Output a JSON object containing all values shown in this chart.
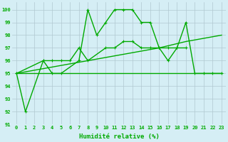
{
  "line1_x": [
    0,
    1,
    3,
    4,
    5,
    7,
    8,
    9,
    10,
    11,
    12,
    13,
    14,
    15,
    16,
    17,
    18,
    19,
    20,
    21,
    22,
    23
  ],
  "line1_y": [
    95,
    92,
    96,
    95,
    95,
    96,
    100,
    98,
    99,
    100,
    100,
    100,
    99,
    99,
    97,
    96,
    97,
    99,
    95,
    95,
    95,
    95
  ],
  "line2_x": [
    0,
    3,
    4,
    5,
    6,
    7,
    8,
    10,
    11,
    12,
    13,
    14,
    15,
    16,
    17,
    18,
    19
  ],
  "line2_y": [
    95,
    96,
    96,
    96,
    96,
    97,
    96,
    97,
    97,
    97.5,
    97.5,
    97,
    97,
    97,
    97,
    97,
    97
  ],
  "line3_x": [
    0,
    4,
    8,
    12,
    16,
    19,
    23
  ],
  "line3_y": [
    95.0,
    95.5,
    96.0,
    96.5,
    97.0,
    97.5,
    98.0
  ],
  "line4_x": [
    0,
    23
  ],
  "line4_y": [
    95,
    95
  ],
  "xlim": [
    -0.5,
    23.5
  ],
  "ylim": [
    91,
    100.6
  ],
  "yticks": [
    91,
    92,
    93,
    94,
    95,
    96,
    97,
    98,
    99,
    100
  ],
  "xticks": [
    0,
    1,
    2,
    3,
    4,
    5,
    6,
    7,
    8,
    9,
    10,
    11,
    12,
    13,
    14,
    15,
    16,
    17,
    18,
    19,
    20,
    21,
    22,
    23
  ],
  "xlabel": "Humidité relative (%)",
  "bg_color": "#d5eef5",
  "grid_color": "#b0c8d0",
  "line_color": "#00aa00"
}
